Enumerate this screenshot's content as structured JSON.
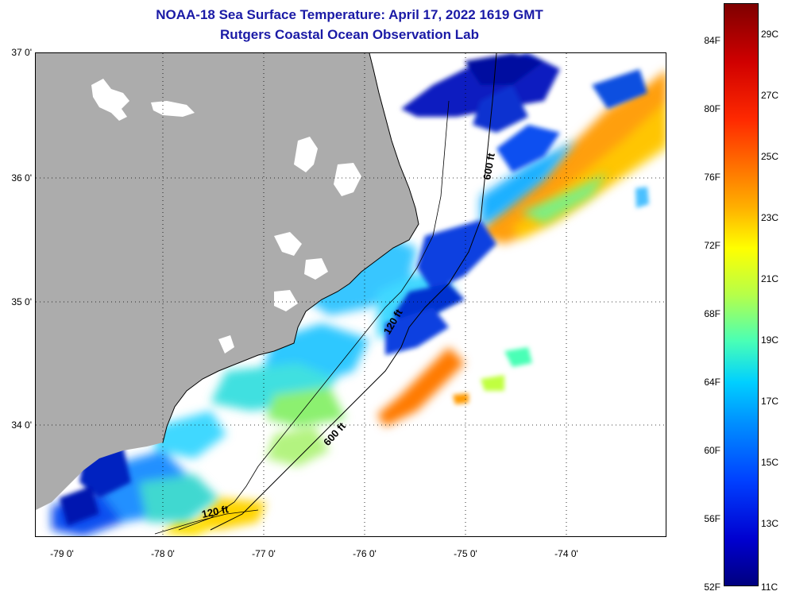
{
  "title_line1": "NOAA-18 Sea Surface Temperature:  April 17, 2022 1619 GMT",
  "title_line2": "Rutgers Coastal Ocean Observation Lab",
  "lat_labels": [
    "37 0'",
    "36 0'",
    "35 0'",
    "34 0'"
  ],
  "lon_labels": [
    "-79 0'",
    "-78 0'",
    "-77 0'",
    "-76 0'",
    "-75 0'",
    "-74 0'"
  ],
  "contour_labels": [
    "600 ft",
    "120 ft",
    "600 ft",
    "120 ft"
  ],
  "colorbar": {
    "f_labels": [
      "84F",
      "80F",
      "76F",
      "72F",
      "68F",
      "64F",
      "60F",
      "56F",
      "52F"
    ],
    "c_labels": [
      "29C",
      "27C",
      "25C",
      "23C",
      "21C",
      "19C",
      "17C",
      "15C",
      "13C",
      "11C"
    ]
  },
  "colors": {
    "land": "#acacac",
    "title": "#1a1aa6"
  }
}
